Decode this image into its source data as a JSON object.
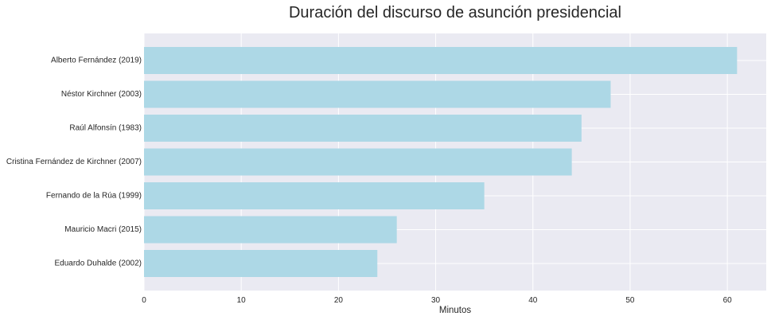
{
  "chart_data": {
    "type": "bar",
    "orientation": "horizontal",
    "title": "Duración del discurso de asunción presidencial",
    "xlabel": "Minutos",
    "ylabel": "",
    "categories": [
      "Alberto Fernández (2019)",
      "Néstor Kirchner (2003)",
      "Raúl Alfonsín (1983)",
      "Cristina Fernández de Kirchner (2007)",
      "Fernando de la Rúa (1999)",
      "Mauricio Macri (2015)",
      "Eduardo Duhalde (2002)"
    ],
    "values": [
      61,
      48,
      45,
      44,
      35,
      26,
      24
    ],
    "xlim": [
      0,
      64
    ],
    "xticks": [
      0,
      10,
      20,
      30,
      40,
      50,
      60
    ],
    "grid": true,
    "colors": {
      "bar": "#add8e6",
      "plot_background": "#eaeaf2",
      "grid": "#ffffff"
    }
  }
}
